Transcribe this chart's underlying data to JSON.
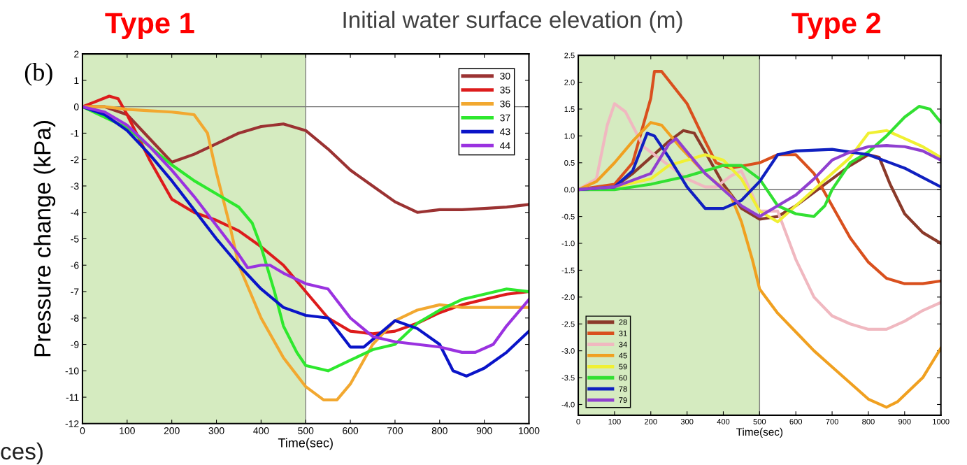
{
  "chart_data": [
    {
      "type": "line",
      "xlabel": "Time(sec)",
      "ylabel": "Pressure change (kPa)",
      "annotations": [
        "Type 1",
        "Initial water surface elevation (m)",
        "(b)",
        "ces)"
      ],
      "xlim": [
        0,
        1000
      ],
      "ylim": [
        -12,
        2
      ],
      "xticks": [
        0,
        100,
        200,
        300,
        400,
        500,
        600,
        700,
        800,
        900,
        1000
      ],
      "yticks": [
        -12,
        -11,
        -10,
        -9,
        -8,
        -7,
        -6,
        -5,
        -4,
        -3,
        -2,
        -1,
        0,
        1,
        2
      ],
      "legend": "top right",
      "grid": false,
      "bands": [
        {
          "axis": "x",
          "from": 0,
          "to": 500,
          "color": "#d5ebc0"
        }
      ],
      "ref_lines": [
        {
          "axis": "y",
          "value": 0,
          "color": "#707070"
        },
        {
          "axis": "x",
          "value": 500,
          "color": "#808080"
        }
      ],
      "series": [
        {
          "name": "30",
          "color": "#9b3232",
          "x": [
            0,
            50,
            100,
            150,
            200,
            250,
            300,
            350,
            400,
            450,
            500,
            550,
            600,
            650,
            700,
            750,
            800,
            850,
            900,
            950,
            1000
          ],
          "values": [
            0,
            0,
            -0.3,
            -1.2,
            -2.1,
            -1.8,
            -1.4,
            -1.0,
            -0.75,
            -0.65,
            -0.9,
            -1.6,
            -2.4,
            -3.0,
            -3.6,
            -4.0,
            -3.9,
            -3.9,
            -3.85,
            -3.8,
            -3.7
          ]
        },
        {
          "name": "35",
          "color": "#dd1c1c",
          "x": [
            0,
            30,
            60,
            80,
            100,
            150,
            200,
            250,
            300,
            350,
            400,
            450,
            500,
            550,
            600,
            650,
            700,
            750,
            800,
            850,
            900,
            950,
            1000
          ],
          "values": [
            0,
            0.2,
            0.4,
            0.3,
            -0.3,
            -2.0,
            -3.5,
            -4.0,
            -4.3,
            -4.7,
            -5.3,
            -6.0,
            -7.0,
            -8.0,
            -8.5,
            -8.6,
            -8.5,
            -8.2,
            -7.8,
            -7.5,
            -7.3,
            -7.1,
            -7.0
          ]
        },
        {
          "name": "36",
          "color": "#f2a830",
          "x": [
            0,
            50,
            100,
            150,
            200,
            250,
            280,
            300,
            330,
            350,
            400,
            450,
            500,
            540,
            570,
            600,
            650,
            700,
            750,
            800,
            850,
            900,
            950,
            1000
          ],
          "values": [
            0,
            0,
            -0.1,
            -0.15,
            -0.2,
            -0.3,
            -1.0,
            -2.5,
            -4.5,
            -6.0,
            -8.0,
            -9.5,
            -10.6,
            -11.1,
            -11.1,
            -10.5,
            -9.0,
            -8.1,
            -7.7,
            -7.5,
            -7.6,
            -7.6,
            -7.6,
            -7.6
          ]
        },
        {
          "name": "37",
          "color": "#2ee82e",
          "x": [
            0,
            100,
            150,
            200,
            250,
            300,
            350,
            380,
            400,
            430,
            450,
            480,
            500,
            550,
            600,
            650,
            700,
            750,
            800,
            850,
            900,
            950,
            1000
          ],
          "values": [
            0,
            -0.8,
            -1.5,
            -2.2,
            -2.8,
            -3.3,
            -3.8,
            -4.4,
            -5.3,
            -7.0,
            -8.3,
            -9.3,
            -9.8,
            -10.0,
            -9.6,
            -9.2,
            -9.0,
            -8.2,
            -7.7,
            -7.3,
            -7.1,
            -6.9,
            -7.0
          ]
        },
        {
          "name": "43",
          "color": "#0a14c8",
          "x": [
            0,
            50,
            100,
            150,
            200,
            250,
            300,
            350,
            400,
            450,
            500,
            550,
            600,
            630,
            700,
            750,
            800,
            830,
            860,
            900,
            950,
            1000
          ],
          "values": [
            0,
            -0.3,
            -0.9,
            -1.8,
            -2.8,
            -3.9,
            -5.0,
            -6.0,
            -6.9,
            -7.6,
            -7.9,
            -8.0,
            -9.1,
            -9.1,
            -8.1,
            -8.4,
            -9.0,
            -10.0,
            -10.2,
            -9.9,
            -9.3,
            -8.5
          ]
        },
        {
          "name": "44",
          "color": "#9a32e0",
          "x": [
            0,
            50,
            100,
            150,
            200,
            250,
            300,
            350,
            370,
            400,
            420,
            450,
            500,
            550,
            600,
            650,
            700,
            750,
            800,
            850,
            880,
            920,
            950,
            1000
          ],
          "values": [
            0,
            -0.2,
            -0.7,
            -1.5,
            -2.4,
            -3.4,
            -4.5,
            -5.6,
            -6.1,
            -6.0,
            -6.0,
            -6.3,
            -6.7,
            -6.9,
            -8.0,
            -8.7,
            -8.9,
            -9.0,
            -9.1,
            -9.3,
            -9.3,
            -9.0,
            -8.3,
            -7.3
          ]
        }
      ]
    },
    {
      "type": "line",
      "xlabel": "Time(sec)",
      "annotations": [
        "Type 2"
      ],
      "xlim": [
        0,
        1000
      ],
      "ylim": [
        -4.2,
        2.5
      ],
      "xticks": [
        0,
        100,
        200,
        300,
        400,
        500,
        600,
        700,
        800,
        900,
        1000
      ],
      "yticks": [
        {
          "value": -4,
          "label": "-4.0"
        },
        {
          "value": -3.5,
          "label": "-3.5"
        },
        {
          "value": -3,
          "label": "-3.0"
        },
        {
          "value": -2.5,
          "label": "-2.5"
        },
        {
          "value": -2,
          "label": "-2.0"
        },
        {
          "value": -1.5,
          "label": "-1.5"
        },
        {
          "value": -1,
          "label": "-1.0"
        },
        {
          "value": -0.5,
          "label": "-0.5"
        },
        {
          "value": 0,
          "label": "0.0"
        },
        {
          "value": 0.5,
          "label": "0.5"
        },
        {
          "value": 1,
          "label": "1.0"
        },
        {
          "value": 1.5,
          "label": "1.5"
        },
        {
          "value": 2,
          "label": "2.0"
        },
        {
          "value": 2.5,
          "label": "2.5"
        }
      ],
      "legend": "bottom left",
      "grid": false,
      "bands": [
        {
          "axis": "x",
          "from": 0,
          "to": 500,
          "color": "#d5ebc0"
        }
      ],
      "ref_lines": [
        {
          "axis": "y",
          "value": 0,
          "color": "#707070"
        },
        {
          "axis": "x",
          "value": 500,
          "color": "#808080"
        }
      ],
      "series": [
        {
          "name": "28",
          "color": "#8b3a2a",
          "x": [
            0,
            100,
            150,
            200,
            250,
            290,
            320,
            350,
            400,
            450,
            500,
            550,
            600,
            650,
            700,
            750,
            800,
            830,
            860,
            900,
            950,
            1000
          ],
          "values": [
            0,
            0.05,
            0.3,
            0.6,
            0.9,
            1.1,
            1.05,
            0.7,
            0.1,
            -0.35,
            -0.55,
            -0.5,
            -0.3,
            -0.05,
            0.2,
            0.45,
            0.65,
            0.6,
            0.1,
            -0.45,
            -0.8,
            -1.0
          ]
        },
        {
          "name": "31",
          "color": "#d9501e",
          "x": [
            0,
            100,
            150,
            200,
            210,
            230,
            300,
            350,
            380,
            420,
            500,
            550,
            600,
            650,
            700,
            750,
            800,
            850,
            900,
            950,
            1000
          ],
          "values": [
            0,
            0.1,
            0.5,
            1.7,
            2.2,
            2.2,
            1.6,
            0.9,
            0.5,
            0.4,
            0.5,
            0.65,
            0.65,
            0.3,
            -0.3,
            -0.9,
            -1.35,
            -1.65,
            -1.75,
            -1.75,
            -1.7
          ]
        },
        {
          "name": "34",
          "color": "#f0b8c0",
          "x": [
            0,
            50,
            80,
            100,
            130,
            180,
            250,
            300,
            350,
            380,
            420,
            450,
            500,
            550,
            600,
            650,
            700,
            750,
            800,
            850,
            900,
            950,
            1000
          ],
          "values": [
            0,
            0.2,
            1.2,
            1.6,
            1.45,
            0.8,
            0.45,
            0.2,
            0.05,
            0.05,
            0.25,
            0.35,
            -0.4,
            -0.4,
            -1.3,
            -2.0,
            -2.35,
            -2.5,
            -2.6,
            -2.6,
            -2.45,
            -2.25,
            -2.1
          ]
        },
        {
          "name": "45",
          "color": "#f0a020",
          "x": [
            0,
            50,
            100,
            150,
            200,
            230,
            280,
            350,
            420,
            450,
            480,
            500,
            550,
            600,
            650,
            700,
            750,
            800,
            850,
            880,
            950,
            1000
          ],
          "values": [
            0,
            0.15,
            0.5,
            0.9,
            1.25,
            1.2,
            0.8,
            0.3,
            -0.1,
            -0.6,
            -1.3,
            -1.85,
            -2.3,
            -2.65,
            -3.0,
            -3.3,
            -3.6,
            -3.9,
            -4.05,
            -3.95,
            -3.5,
            -2.95
          ]
        },
        {
          "name": "59",
          "color": "#f0f032",
          "x": [
            0,
            100,
            200,
            250,
            300,
            350,
            400,
            450,
            500,
            550,
            600,
            650,
            700,
            750,
            800,
            850,
            900,
            950,
            1000
          ],
          "values": [
            0,
            0.05,
            0.2,
            0.45,
            0.55,
            0.65,
            0.55,
            0.2,
            -0.4,
            -0.6,
            -0.3,
            0.0,
            0.3,
            0.6,
            1.05,
            1.1,
            0.95,
            0.8,
            0.6
          ]
        },
        {
          "name": "60",
          "color": "#32e032",
          "x": [
            0,
            100,
            200,
            300,
            400,
            450,
            500,
            550,
            600,
            650,
            680,
            700,
            750,
            800,
            850,
            900,
            940,
            970,
            1000
          ],
          "values": [
            0,
            0.0,
            0.1,
            0.25,
            0.45,
            0.45,
            0.2,
            -0.3,
            -0.45,
            -0.5,
            -0.3,
            0.0,
            0.5,
            0.7,
            1.0,
            1.35,
            1.55,
            1.5,
            1.25
          ]
        },
        {
          "name": "78",
          "color": "#1020c0",
          "x": [
            0,
            100,
            150,
            190,
            210,
            250,
            300,
            350,
            400,
            450,
            500,
            550,
            600,
            700,
            800,
            900,
            1000
          ],
          "values": [
            0,
            0.05,
            0.35,
            1.05,
            1.0,
            0.6,
            0.05,
            -0.35,
            -0.35,
            -0.2,
            0.15,
            0.65,
            0.72,
            0.75,
            0.65,
            0.4,
            0.05
          ]
        },
        {
          "name": "79",
          "color": "#9040d0",
          "x": [
            0,
            100,
            200,
            250,
            270,
            300,
            350,
            400,
            450,
            500,
            550,
            600,
            650,
            700,
            750,
            800,
            850,
            900,
            950,
            1000
          ],
          "values": [
            0,
            0.05,
            0.3,
            0.85,
            0.95,
            0.7,
            0.3,
            0.0,
            -0.3,
            -0.5,
            -0.3,
            -0.1,
            0.2,
            0.55,
            0.7,
            0.8,
            0.82,
            0.8,
            0.72,
            0.55
          ]
        }
      ]
    }
  ]
}
